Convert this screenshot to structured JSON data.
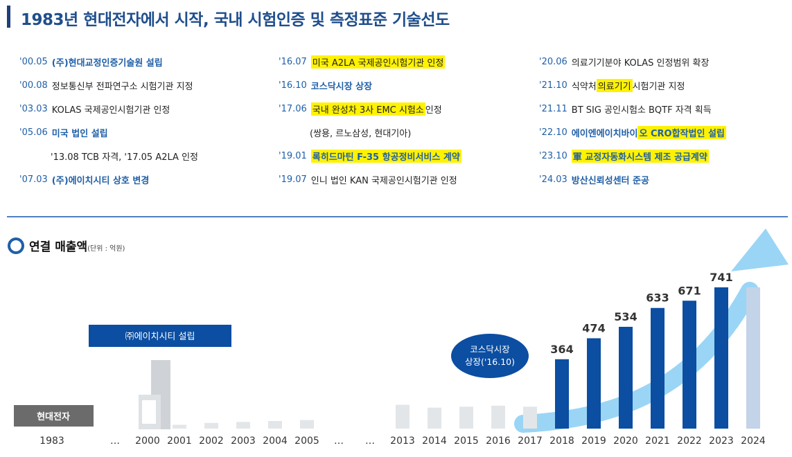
{
  "title": "1983년 현대전자에서 시작, 국내 시험인증 및 측정표준 기술선도",
  "history": {
    "col1": [
      {
        "date": "'00.05",
        "text": "(주)현대교정인증기술원 설립",
        "bold": true
      },
      {
        "date": "'00.08",
        "text": "정보통신부 전파연구소 시험기관 지정"
      },
      {
        "date": "'03.03",
        "text": "KOLAS 국제공인시험기관 인정"
      },
      {
        "date": "'05.06",
        "text": "미국 법인 설립",
        "bold": true
      },
      {
        "date": "",
        "text": "'13.08 TCB 자격, '17.05 A2LA 인정",
        "indent": true
      },
      {
        "date": "'07.03",
        "text": "(주)에이치시티 상호 변경",
        "bold": true
      }
    ],
    "col2": [
      {
        "date": "'16.07",
        "text": "미국 A2LA 국제공인시험기관 인정",
        "hl": "all"
      },
      {
        "date": "'16.10",
        "text": "코스닥시장 상장",
        "bold": true
      },
      {
        "date": "'17.06",
        "hl_text": "국내 완성차 3사 EMC 시험소",
        "rest": " 인정"
      },
      {
        "date": "",
        "text": "(쌍용, 르노삼성, 현대기아)",
        "indent": true
      },
      {
        "date": "'19.01",
        "text": "록히드마틴 F-35 항공정비서비스 계약",
        "bold": true,
        "hl": "all"
      },
      {
        "date": "'19.07",
        "text": "인니 법인 KAN 국제공인시험기관 인정"
      }
    ],
    "col3": [
      {
        "date": "'20.06",
        "text": "의료기기분야 KOLAS 인정범위 확장"
      },
      {
        "date": "'21.10",
        "pre": "식약처 ",
        "hl_text": "의료기기",
        "rest": " 시험기관 지정"
      },
      {
        "date": "'21.11",
        "text": "BT SIG 공인시험소 BQTF 자격 획득"
      },
      {
        "date": "'22.10",
        "pre": "에이엔에이치바이",
        "hl_text": "오 CRO합작법인 설립",
        "bold": true
      },
      {
        "date": "'23.10",
        "text": "軍 교정자동화시스템 제조 공급계약",
        "bold": true,
        "hl": "all"
      },
      {
        "date": "'24.03",
        "text": "방산신뢰성센터 준공",
        "bold": true
      }
    ]
  },
  "section": {
    "title": "연결 매출액",
    "unit": "(단위 : 억원)"
  },
  "annotations": {
    "hct_founded": "㈜에이치시티 설립",
    "hyundai": "현대전자",
    "kosdaq_line1": "코스닥시장",
    "kosdaq_line2": "상장('16.10)"
  },
  "colors": {
    "blue": "#0b4ea2",
    "gray": "#e3e6e8",
    "light": "#c3d3e8",
    "navy_title": "#1f4e8c",
    "highlight": "#fff200"
  },
  "chart_data": {
    "type": "bar",
    "title": "연결 매출액",
    "unit": "(단위 : 억원)",
    "categories": [
      "1983",
      "…",
      "2000",
      "2001",
      "2002",
      "2003",
      "2004",
      "2005",
      "…",
      "…",
      "2013",
      "2014",
      "2015",
      "2016",
      "2017",
      "2018",
      "2019",
      "2020",
      "2021",
      "2022",
      "2023",
      "2024"
    ],
    "values": [
      null,
      null,
      null,
      20,
      30,
      35,
      40,
      45,
      null,
      null,
      125,
      110,
      115,
      120,
      115,
      364,
      474,
      534,
      633,
      671,
      741,
      741
    ],
    "labels": [
      null,
      null,
      null,
      null,
      null,
      null,
      null,
      null,
      null,
      null,
      null,
      null,
      null,
      null,
      null,
      "364",
      "474",
      "534",
      "633",
      "671",
      "741",
      null
    ],
    "ylim": [
      0,
      800
    ]
  }
}
